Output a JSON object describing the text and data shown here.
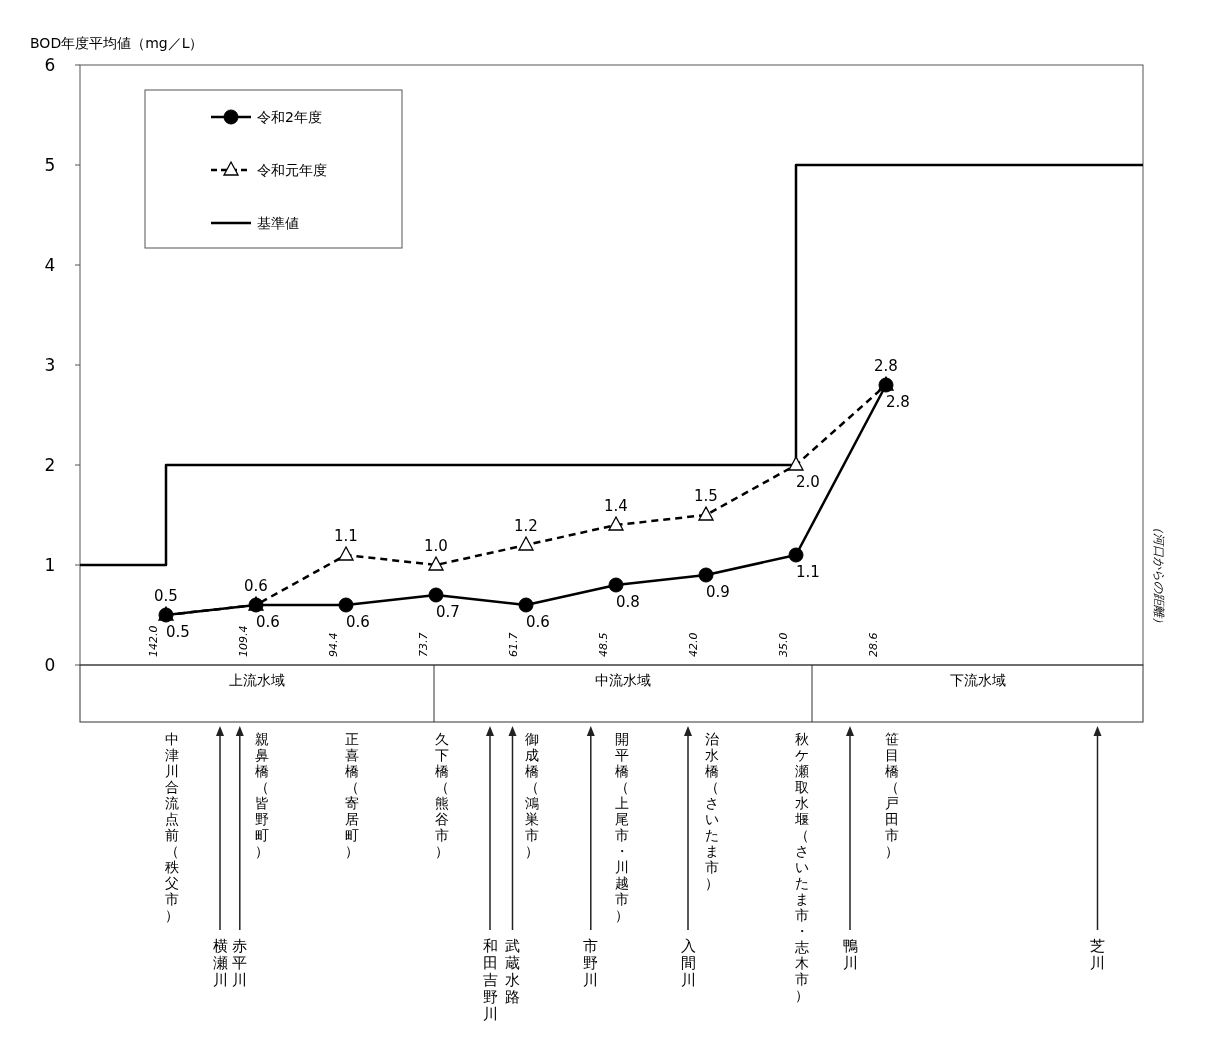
{
  "chart_data": {
    "type": "line",
    "ylabel": "BOD年度平均値（mg／L）",
    "legend": "top left",
    "ylim": [
      0,
      6
    ],
    "yticks": [
      0,
      1,
      2,
      3,
      4,
      5,
      6
    ],
    "categories": [
      "中津川合流点前（秩父市）",
      "親鼻橋（皆野町）",
      "正喜橋（寄居町）",
      "久下橋（熊谷市）",
      "御成橋（鴻巣市）",
      "開平橋（上尾市・川越市）",
      "治水橋（さいたま市）",
      "秋ケ瀬取水堰（さいたま市・志木市）",
      "笹目橋（戸田市）"
    ],
    "series": [
      {
        "name": "令和2年度",
        "color": "#000000",
        "marker": "circle",
        "line_style": "solid",
        "values": [
          0.5,
          0.6,
          0.6,
          0.7,
          0.6,
          0.8,
          0.9,
          1.1,
          2.8
        ],
        "value_labels": [
          "0.5",
          "0.6",
          "0.6",
          "0.7",
          "0.6",
          "0.8",
          "0.9",
          "1.1",
          "2.8"
        ]
      },
      {
        "name": "令和元年度",
        "color": "#000000",
        "marker": "triangle",
        "line_style": "dashed",
        "values": [
          0.5,
          0.6,
          1.1,
          1.0,
          1.2,
          1.4,
          1.5,
          2.0,
          2.8
        ],
        "value_labels": [
          "0.5",
          "0.6",
          "1.1",
          "1.0",
          "1.2",
          "1.4",
          "1.5",
          "2.0",
          "2.8"
        ]
      },
      {
        "name": "基準値",
        "type": "step",
        "color": "#000000",
        "marker": "none",
        "line_style": "solid",
        "values": [
          1,
          2,
          2,
          2,
          2,
          2,
          2,
          2,
          5
        ]
      }
    ],
    "annotations": [
      "142.0",
      "109.4",
      "94.4",
      "73.7",
      "61.7",
      "48.5",
      "42.0",
      "35.0",
      "28.6",
      "上流水域",
      "中流水域",
      "下流水域",
      "（河口からの距離）",
      "横瀬川",
      "赤平川",
      "和田吉野川",
      "武蔵水路",
      "市野川",
      "入間川",
      "鴨川",
      "芝川"
    ]
  }
}
